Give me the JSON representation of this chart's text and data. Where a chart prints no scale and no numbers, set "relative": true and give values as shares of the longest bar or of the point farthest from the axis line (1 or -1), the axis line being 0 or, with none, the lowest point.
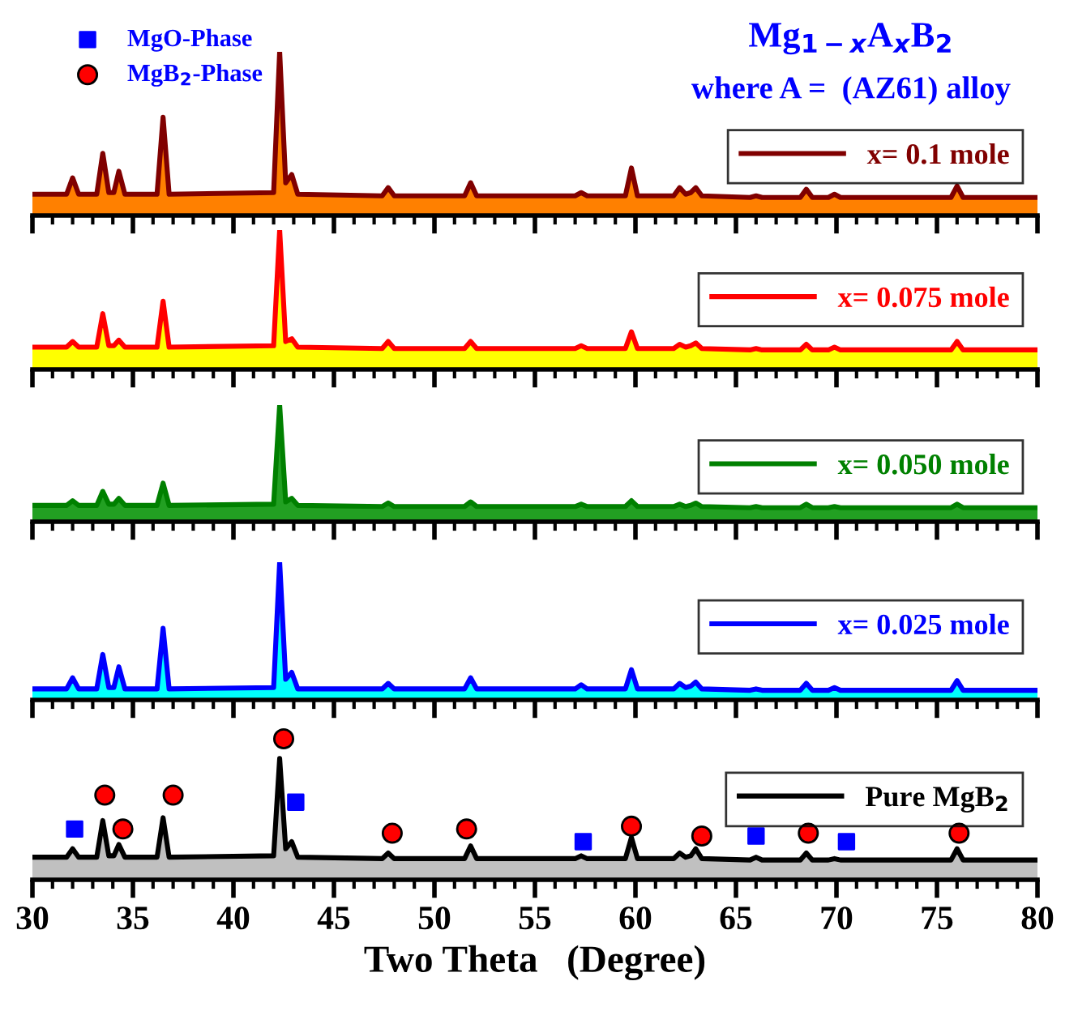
{
  "chart_data": [
    {
      "type": "area",
      "relative": true,
      "title": "Mg$_{1−x}$A$_{x}$B$_{2}$",
      "subtitle": "where A =  (AZ61) alloy",
      "xlim": [
        30,
        80
      ],
      "xticks": [
        30,
        35,
        40,
        45,
        50,
        55,
        60,
        65,
        70,
        75,
        80
      ],
      "tick_labels": false,
      "legend": "right",
      "x": [
        30,
        31.7,
        32.0,
        32.3,
        33.2,
        33.5,
        33.8,
        34.05,
        34.3,
        34.6,
        36.2,
        36.5,
        36.8,
        42.0,
        42.3,
        42.6,
        42.9,
        43.2,
        47.4,
        47.7,
        48.0,
        51.5,
        51.8,
        52.1,
        57.0,
        57.3,
        57.6,
        59.5,
        59.8,
        60.1,
        61.9,
        62.2,
        62.5,
        62.75,
        63.0,
        63.3,
        65.7,
        66.0,
        66.3,
        68.2,
        68.5,
        68.8,
        69.6,
        69.9,
        70.2,
        75.7,
        76.0,
        76.3,
        80
      ],
      "series": [
        {
          "name": "x= 0.1 mole",
          "color": "#800000",
          "values": [
            0.13,
            0.13,
            0.23,
            0.13,
            0.13,
            0.38,
            0.14,
            0.14,
            0.27,
            0.13,
            0.13,
            0.6,
            0.13,
            0.14,
            1,
            0.2,
            0.25,
            0.13,
            0.12,
            0.17,
            0.12,
            0.12,
            0.2,
            0.12,
            0.12,
            0.14,
            0.12,
            0.12,
            0.29,
            0.12,
            0.12,
            0.17,
            0.13,
            0.14,
            0.17,
            0.12,
            0.11,
            0.12,
            0.11,
            0.11,
            0.16,
            0.11,
            0.11,
            0.13,
            0.11,
            0.11,
            0.18,
            0.11,
            0.11
          ]
        }
      ]
    },
    {
      "type": "area",
      "relative": true,
      "xlim": [
        30,
        80
      ],
      "xticks": [
        30,
        35,
        40,
        45,
        50,
        55,
        60,
        65,
        70,
        75,
        80
      ],
      "tick_labels": false,
      "legend": "right",
      "x": [
        30,
        31.7,
        32.0,
        32.3,
        33.2,
        33.5,
        33.8,
        34.05,
        34.3,
        34.6,
        36.2,
        36.5,
        36.8,
        42.0,
        42.3,
        42.6,
        42.9,
        43.2,
        47.4,
        47.7,
        48.0,
        51.5,
        51.8,
        52.1,
        57.0,
        57.3,
        57.6,
        59.5,
        59.8,
        60.1,
        61.9,
        62.2,
        62.5,
        62.75,
        63.0,
        63.3,
        65.7,
        66.0,
        66.3,
        68.2,
        68.5,
        68.8,
        69.6,
        69.9,
        70.2,
        75.7,
        76.0,
        76.3,
        80
      ],
      "series": [
        {
          "name": "x= 0.075 mole",
          "color": "#ff0000",
          "values": [
            0.16,
            0.16,
            0.2,
            0.16,
            0.16,
            0.4,
            0.17,
            0.17,
            0.21,
            0.16,
            0.16,
            0.49,
            0.16,
            0.17,
            1,
            0.2,
            0.22,
            0.16,
            0.15,
            0.2,
            0.15,
            0.15,
            0.2,
            0.15,
            0.15,
            0.17,
            0.15,
            0.15,
            0.27,
            0.15,
            0.15,
            0.18,
            0.16,
            0.17,
            0.19,
            0.15,
            0.14,
            0.15,
            0.14,
            0.14,
            0.18,
            0.14,
            0.14,
            0.16,
            0.14,
            0.14,
            0.2,
            0.14,
            0.14
          ]
        }
      ]
    },
    {
      "type": "area",
      "relative": true,
      "xlim": [
        30,
        80
      ],
      "xticks": [
        30,
        35,
        40,
        45,
        50,
        55,
        60,
        65,
        70,
        75,
        80
      ],
      "tick_labels": false,
      "legend": "right",
      "x": [
        30,
        31.7,
        32.0,
        32.3,
        33.2,
        33.5,
        33.8,
        34.05,
        34.3,
        34.6,
        36.2,
        36.5,
        36.8,
        42.0,
        42.3,
        42.6,
        42.9,
        43.2,
        47.4,
        47.7,
        48.0,
        51.5,
        51.8,
        52.1,
        57.0,
        57.3,
        57.6,
        59.5,
        59.8,
        60.1,
        61.9,
        62.2,
        62.5,
        62.75,
        63.0,
        63.3,
        65.7,
        66.0,
        66.3,
        68.2,
        68.5,
        68.8,
        69.6,
        69.9,
        70.2,
        75.7,
        76.0,
        76.3,
        80
      ],
      "series": [
        {
          "name": "x= 0.050 mole",
          "color": "#008000",
          "values": [
            0.14,
            0.14,
            0.18,
            0.14,
            0.14,
            0.26,
            0.15,
            0.15,
            0.2,
            0.14,
            0.14,
            0.33,
            0.14,
            0.15,
            1,
            0.17,
            0.2,
            0.14,
            0.13,
            0.16,
            0.13,
            0.13,
            0.17,
            0.13,
            0.13,
            0.15,
            0.13,
            0.13,
            0.18,
            0.13,
            0.13,
            0.15,
            0.13,
            0.14,
            0.16,
            0.13,
            0.12,
            0.13,
            0.12,
            0.12,
            0.15,
            0.12,
            0.12,
            0.13,
            0.12,
            0.12,
            0.15,
            0.12,
            0.12
          ]
        }
      ]
    },
    {
      "type": "area",
      "relative": true,
      "xlim": [
        30,
        80
      ],
      "xticks": [
        30,
        35,
        40,
        45,
        50,
        55,
        60,
        65,
        70,
        75,
        80
      ],
      "tick_labels": false,
      "legend": "right",
      "x": [
        30,
        31.7,
        32.0,
        32.3,
        33.2,
        33.5,
        33.8,
        34.05,
        34.3,
        34.6,
        36.2,
        36.5,
        36.8,
        42.0,
        42.3,
        42.6,
        42.9,
        43.2,
        47.4,
        47.7,
        48.0,
        51.5,
        51.8,
        52.1,
        57.0,
        57.3,
        57.6,
        59.5,
        59.8,
        60.1,
        61.9,
        62.2,
        62.5,
        62.75,
        63.0,
        63.3,
        65.7,
        66.0,
        66.3,
        68.2,
        68.5,
        68.8,
        69.6,
        69.9,
        70.2,
        75.7,
        76.0,
        76.3,
        80
      ],
      "series": [
        {
          "name": "x= 0.025 mole",
          "color": "#0000ff",
          "values": [
            0.08,
            0.08,
            0.16,
            0.08,
            0.08,
            0.33,
            0.09,
            0.09,
            0.24,
            0.08,
            0.08,
            0.52,
            0.08,
            0.09,
            1,
            0.15,
            0.2,
            0.08,
            0.08,
            0.12,
            0.08,
            0.08,
            0.16,
            0.08,
            0.08,
            0.11,
            0.08,
            0.08,
            0.22,
            0.08,
            0.08,
            0.12,
            0.09,
            0.1,
            0.13,
            0.08,
            0.07,
            0.08,
            0.07,
            0.07,
            0.12,
            0.07,
            0.07,
            0.09,
            0.07,
            0.07,
            0.14,
            0.07,
            0.07
          ]
        }
      ]
    },
    {
      "type": "area",
      "relative": true,
      "xlabel": "Two Theta   (Degree)",
      "xlim": [
        30,
        80
      ],
      "xticks": [
        30,
        35,
        40,
        45,
        50,
        55,
        60,
        65,
        70,
        75,
        80
      ],
      "tick_labels": "x",
      "legend": "right",
      "x": [
        30,
        31.7,
        32.0,
        32.3,
        33.2,
        33.5,
        33.8,
        34.05,
        34.3,
        34.6,
        36.2,
        36.5,
        36.8,
        42.0,
        42.3,
        42.6,
        42.9,
        43.2,
        47.4,
        47.7,
        48.0,
        51.5,
        51.8,
        52.1,
        57.0,
        57.3,
        57.6,
        59.5,
        59.8,
        60.1,
        61.9,
        62.2,
        62.5,
        62.75,
        63.0,
        63.3,
        65.7,
        66.0,
        66.3,
        68.2,
        68.5,
        68.8,
        69.6,
        69.9,
        70.2,
        75.7,
        76.0,
        76.3,
        80
      ],
      "series": [
        {
          "name": "Pure MgB$_{2}$",
          "color": "#000000",
          "values": [
            0.16,
            0.16,
            0.22,
            0.16,
            0.16,
            0.42,
            0.17,
            0.17,
            0.25,
            0.16,
            0.16,
            0.44,
            0.16,
            0.17,
            0.86,
            0.22,
            0.27,
            0.16,
            0.15,
            0.19,
            0.15,
            0.15,
            0.24,
            0.15,
            0.15,
            0.17,
            0.15,
            0.15,
            0.3,
            0.15,
            0.15,
            0.19,
            0.16,
            0.17,
            0.22,
            0.15,
            0.14,
            0.16,
            0.14,
            0.14,
            0.19,
            0.14,
            0.14,
            0.15,
            0.14,
            0.14,
            0.22,
            0.14,
            0.14
          ]
        },
        {
          "type": "scatter",
          "name": "MgO-Phase",
          "color": "#0000ff",
          "marker": "square",
          "x": [
            32.1,
            43.1,
            57.4,
            66.0,
            70.5
          ],
          "values": [
            0.36,
            0.55,
            0.27,
            0.31,
            0.27
          ]
        },
        {
          "type": "scatter",
          "name": "MgB$_{2}$-Phase",
          "color": "#ff0000",
          "marker": "circle",
          "x": [
            33.6,
            34.5,
            37.0,
            42.5,
            47.9,
            51.6,
            59.8,
            63.3,
            68.6,
            76.1
          ],
          "values": [
            0.6,
            0.36,
            0.6,
            1,
            0.33,
            0.36,
            0.38,
            0.31,
            0.33,
            0.33
          ]
        }
      ]
    }
  ]
}
